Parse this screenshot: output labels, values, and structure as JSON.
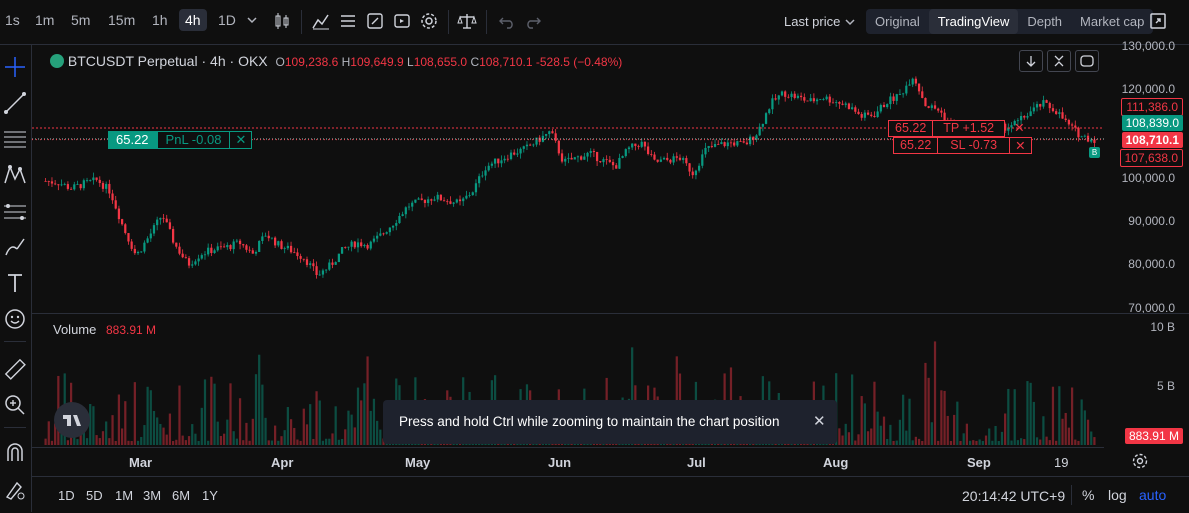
{
  "toolbar": {
    "timeframes": [
      "1s",
      "1m",
      "5m",
      "15m",
      "1h",
      "4h",
      "1D"
    ],
    "active_timeframe": "4h",
    "price_source": "Last price",
    "views": [
      "Original",
      "TradingView",
      "Depth",
      "Market cap"
    ],
    "active_view": "TradingView"
  },
  "legend": {
    "symbol": "BTCUSDT Perpetual",
    "interval": "4h",
    "exchange": "OKX",
    "o_label": "O",
    "o": "109,238.6",
    "h_label": "H",
    "h": "109,649.9",
    "l_label": "L",
    "l": "108,655.0",
    "c_label": "C",
    "c": "108,710.1",
    "change": "-528.5 (−0.48%)"
  },
  "position": {
    "entry": "65.22",
    "pnl": "PnL -0.08",
    "tp_entry": "65.22",
    "tp": "TP +1.52",
    "sl_entry": "65.22",
    "sl": "SL -0.73"
  },
  "price_scale": {
    "ticks": [
      "130,000.0",
      "120,000.0",
      "100,000.0",
      "90,000.0",
      "80,000.0",
      "70,000.0"
    ],
    "tp_price": "111,386.0",
    "entry_price": "108,839.0",
    "last_price": "108,710.1",
    "sl_price": "107,638.0"
  },
  "volume": {
    "label": "Volume",
    "value": "883.91 M",
    "ticks": [
      "10 B",
      "5 B"
    ],
    "last_badge": "883.91 M"
  },
  "date_axis": [
    "Mar",
    "Apr",
    "May",
    "Jun",
    "Jul",
    "Aug",
    "Sep",
    "19"
  ],
  "toast": {
    "message": "Press and hold Ctrl while zooming to maintain the chart position"
  },
  "bottom": {
    "ranges": [
      "1D",
      "5D",
      "1M",
      "3M",
      "6M",
      "1Y"
    ],
    "time": "20:14:42 UTC+9",
    "percent": "%",
    "log": "log",
    "auto": "auto"
  },
  "colors": {
    "up": "#089981",
    "down": "#f23645",
    "accent": "#2962ff",
    "bg": "#0f0f0f"
  },
  "chart_data": {
    "type": "candlestick",
    "y_axis_range": [
      70000,
      130000
    ],
    "volume_range": [
      0,
      10000000000
    ],
    "x_labels": [
      "Mar",
      "Apr",
      "May",
      "Jun",
      "Jul",
      "Aug",
      "Sep",
      "19"
    ],
    "series": [
      {
        "values": [
          99200,
          98800,
          97500,
          98600,
          99400,
          96800,
          88500,
          82000,
          86500,
          91500,
          84500,
          80000,
          82500,
          83500,
          84000,
          85000,
          82500,
          87000,
          84500,
          83200,
          81500,
          77500,
          79800,
          83500,
          85000,
          84500,
          87000,
          90000,
          93500,
          94500,
          95500,
          94800,
          94000,
          97000,
          102500,
          104000,
          105500,
          106500,
          108500,
          110500,
          103500,
          104500,
          105500,
          104000,
          102500,
          106500,
          108000,
          103500,
          104000,
          104500,
          101000,
          106500,
          107500,
          108000,
          107500,
          110500,
          117000,
          119500,
          118500,
          117500,
          118500,
          117500,
          116500,
          114000,
          114500,
          117500,
          119000,
          123500,
          116500,
          115500,
          111500,
          110000,
          108000,
          111000,
          111500,
          112500,
          115000,
          117000,
          115500,
          112000,
          109500,
          108710
        ]
      }
    ]
  }
}
